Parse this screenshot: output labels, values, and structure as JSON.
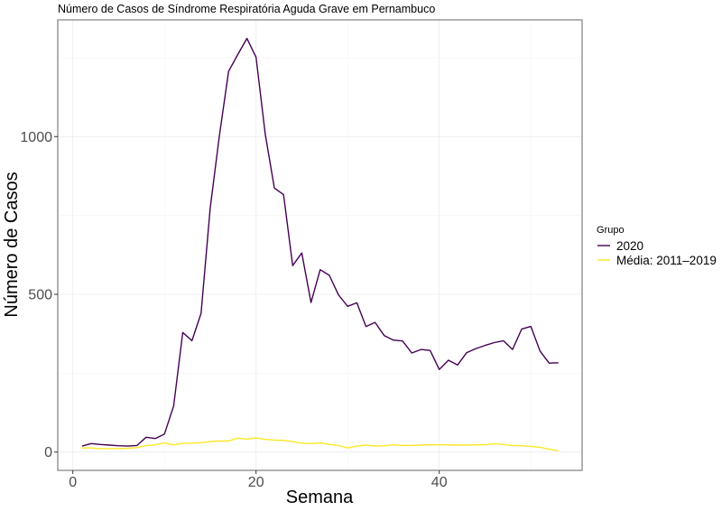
{
  "chart_data": {
    "type": "line",
    "title": "Número de Casos de Síndrome Respiratória Aguda Grave em Pernambuco",
    "xlabel": "Semana",
    "ylabel": "Número de Casos",
    "xlim": [
      -1.6,
      55.6
    ],
    "ylim": [
      -59,
      1368
    ],
    "x_ticks": [
      0,
      20,
      40
    ],
    "x_tick_labels": [
      "0",
      "20",
      "40"
    ],
    "x_minor_grid": [
      10,
      30,
      50
    ],
    "y_ticks": [
      0,
      500,
      1000
    ],
    "y_tick_labels": [
      "0",
      "500",
      "1000"
    ],
    "y_minor_grid": [
      250,
      750,
      1250
    ],
    "grid": true,
    "legend_position": "right",
    "legend_title": "Grupo",
    "x": [
      1,
      2,
      3,
      4,
      5,
      6,
      7,
      8,
      9,
      10,
      11,
      12,
      13,
      14,
      15,
      16,
      17,
      18,
      19,
      20,
      21,
      22,
      23,
      24,
      25,
      26,
      27,
      28,
      29,
      30,
      31,
      32,
      33,
      34,
      35,
      36,
      37,
      38,
      39,
      40,
      41,
      42,
      43,
      44,
      45,
      46,
      47,
      48,
      49,
      50,
      51,
      52,
      53
    ],
    "series": [
      {
        "name": "2020",
        "color": "#440154",
        "values": [
          19,
          27,
          24,
          22,
          20,
          19,
          21,
          47,
          43,
          57,
          146,
          379,
          353,
          440,
          773,
          1003,
          1207,
          1260,
          1311,
          1252,
          1008,
          837,
          816,
          591,
          631,
          474,
          578,
          560,
          498,
          462,
          473,
          398,
          411,
          369,
          355,
          352,
          314,
          325,
          322,
          262,
          291,
          276,
          315,
          328,
          338,
          347,
          353,
          325,
          390,
          398,
          320,
          282,
          283
        ]
      },
      {
        "name": "Média: 2011–2019",
        "color": "#FDE725",
        "values": [
          13,
          13,
          11,
          11,
          11,
          12,
          14,
          21,
          23,
          29,
          23,
          28,
          28,
          30,
          33,
          35,
          35,
          44,
          41,
          45,
          40,
          38,
          37,
          33,
          28,
          27,
          29,
          24,
          21,
          13,
          19,
          22,
          19,
          20,
          23,
          21,
          21,
          22,
          23,
          23,
          23,
          22,
          22,
          23,
          23,
          26,
          24,
          21,
          20,
          18,
          15,
          9,
          4
        ]
      }
    ]
  }
}
